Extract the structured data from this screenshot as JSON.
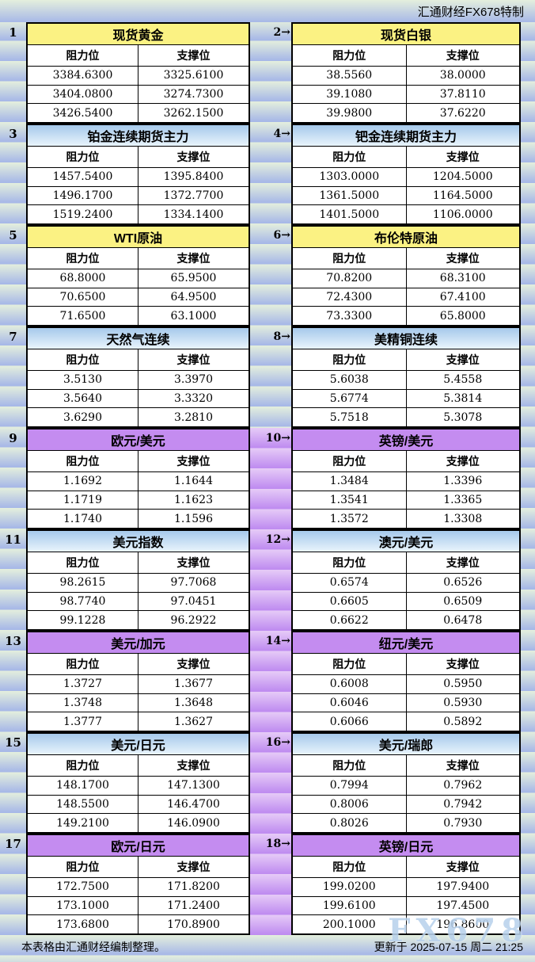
{
  "meta": {
    "brand": "汇通财经FX678特制",
    "footer_left": "本表格由汇通财经编制整理。",
    "footer_right": "更新于 2025-07-15 周二 21:25",
    "watermark": "FX678"
  },
  "columns": {
    "resistance": "阻力位",
    "support": "支撑位"
  },
  "colors": {
    "header_yellow": "#fbf283",
    "header_blue_top": "#a6c9eb",
    "header_blue_bottom": "#e9f4fc",
    "header_purple": "#c48cf0",
    "stripe_top": "#e4efdd",
    "stripe_bottom": "#a7b8e7",
    "gutter_purple_top": "#e6cbf7",
    "gutter_purple_bottom": "#bf8cf0",
    "border": "#000000",
    "watermark_color": "#b9d2ec"
  },
  "sections": [
    {
      "num_label": "1",
      "title": "现货黄金",
      "header_style": "yellow",
      "rows": [
        [
          "3384.6300",
          "3325.6100"
        ],
        [
          "3404.0800",
          "3274.7300"
        ],
        [
          "3426.5400",
          "3262.1500"
        ]
      ]
    },
    {
      "num_label": "2→",
      "title": "现货白银",
      "header_style": "yellow",
      "gutter_style": "stripe",
      "rows": [
        [
          "38.5560",
          "38.0000"
        ],
        [
          "39.1080",
          "37.8110"
        ],
        [
          "39.9800",
          "37.6220"
        ]
      ]
    },
    {
      "num_label": "3",
      "title": "铂金连续期货主力",
      "header_style": "blue",
      "rows": [
        [
          "1457.5400",
          "1395.8400"
        ],
        [
          "1496.1700",
          "1372.7700"
        ],
        [
          "1519.2400",
          "1334.1400"
        ]
      ]
    },
    {
      "num_label": "4→",
      "title": "钯金连续期货主力",
      "header_style": "blue",
      "gutter_style": "stripe",
      "rows": [
        [
          "1303.0000",
          "1204.5000"
        ],
        [
          "1361.5000",
          "1164.5000"
        ],
        [
          "1401.5000",
          "1106.0000"
        ]
      ]
    },
    {
      "num_label": "5",
      "title": "WTI原油",
      "header_style": "yellow",
      "rows": [
        [
          "68.8000",
          "65.9500"
        ],
        [
          "70.6500",
          "64.9500"
        ],
        [
          "71.6500",
          "63.1000"
        ]
      ]
    },
    {
      "num_label": "6→",
      "title": "布伦特原油",
      "header_style": "yellow",
      "gutter_style": "stripe",
      "rows": [
        [
          "70.8200",
          "68.3100"
        ],
        [
          "72.4300",
          "67.4100"
        ],
        [
          "73.3300",
          "65.8000"
        ]
      ]
    },
    {
      "num_label": "7",
      "title": "天然气连续",
      "header_style": "blue",
      "rows": [
        [
          "3.5130",
          "3.3970"
        ],
        [
          "3.5640",
          "3.3320"
        ],
        [
          "3.6290",
          "3.2810"
        ]
      ]
    },
    {
      "num_label": "8→",
      "title": "美精铜连续",
      "header_style": "blue",
      "gutter_style": "stripe",
      "rows": [
        [
          "5.6038",
          "5.4558"
        ],
        [
          "5.6774",
          "5.3814"
        ],
        [
          "5.7518",
          "5.3078"
        ]
      ]
    },
    {
      "num_label": "9",
      "title": "欧元/美元",
      "header_style": "purple",
      "rows": [
        [
          "1.1692",
          "1.1644"
        ],
        [
          "1.1719",
          "1.1623"
        ],
        [
          "1.1740",
          "1.1596"
        ]
      ]
    },
    {
      "num_label": "10→",
      "title": "英镑/美元",
      "header_style": "purple",
      "gutter_style": "purple",
      "rows": [
        [
          "1.3484",
          "1.3396"
        ],
        [
          "1.3541",
          "1.3365"
        ],
        [
          "1.3572",
          "1.3308"
        ]
      ]
    },
    {
      "num_label": "11",
      "title": "美元指数",
      "header_style": "blue",
      "rows": [
        [
          "98.2615",
          "97.7068"
        ],
        [
          "98.7740",
          "97.0451"
        ],
        [
          "99.1228",
          "96.2922"
        ]
      ]
    },
    {
      "num_label": "12→",
      "title": "澳元/美元",
      "header_style": "blue",
      "gutter_style": "purple",
      "rows": [
        [
          "0.6574",
          "0.6526"
        ],
        [
          "0.6605",
          "0.6509"
        ],
        [
          "0.6622",
          "0.6478"
        ]
      ]
    },
    {
      "num_label": "13",
      "title": "美元/加元",
      "header_style": "purple",
      "rows": [
        [
          "1.3727",
          "1.3677"
        ],
        [
          "1.3748",
          "1.3648"
        ],
        [
          "1.3777",
          "1.3627"
        ]
      ]
    },
    {
      "num_label": "14→",
      "title": "纽元/美元",
      "header_style": "purple",
      "gutter_style": "purple",
      "rows": [
        [
          "0.6008",
          "0.5950"
        ],
        [
          "0.6046",
          "0.5930"
        ],
        [
          "0.6066",
          "0.5892"
        ]
      ]
    },
    {
      "num_label": "15",
      "title": "美元/日元",
      "header_style": "blue",
      "rows": [
        [
          "148.1700",
          "147.1300"
        ],
        [
          "148.5500",
          "146.4700"
        ],
        [
          "149.2100",
          "146.0900"
        ]
      ]
    },
    {
      "num_label": "16→",
      "title": "美元/瑞郎",
      "header_style": "blue",
      "gutter_style": "purple",
      "rows": [
        [
          "0.7994",
          "0.7962"
        ],
        [
          "0.8006",
          "0.7942"
        ],
        [
          "0.8026",
          "0.7930"
        ]
      ]
    },
    {
      "num_label": "17",
      "title": "欧元/日元",
      "header_style": "purple",
      "rows": [
        [
          "172.7500",
          "171.8200"
        ],
        [
          "173.1000",
          "171.2400"
        ],
        [
          "173.6800",
          "170.8900"
        ]
      ]
    },
    {
      "num_label": "18→",
      "title": "英镑/日元",
      "header_style": "purple",
      "gutter_style": "purple",
      "rows": [
        [
          "199.0200",
          "197.9400"
        ],
        [
          "199.6100",
          "197.4500"
        ],
        [
          "200.1000",
          "196.8600"
        ]
      ]
    }
  ]
}
